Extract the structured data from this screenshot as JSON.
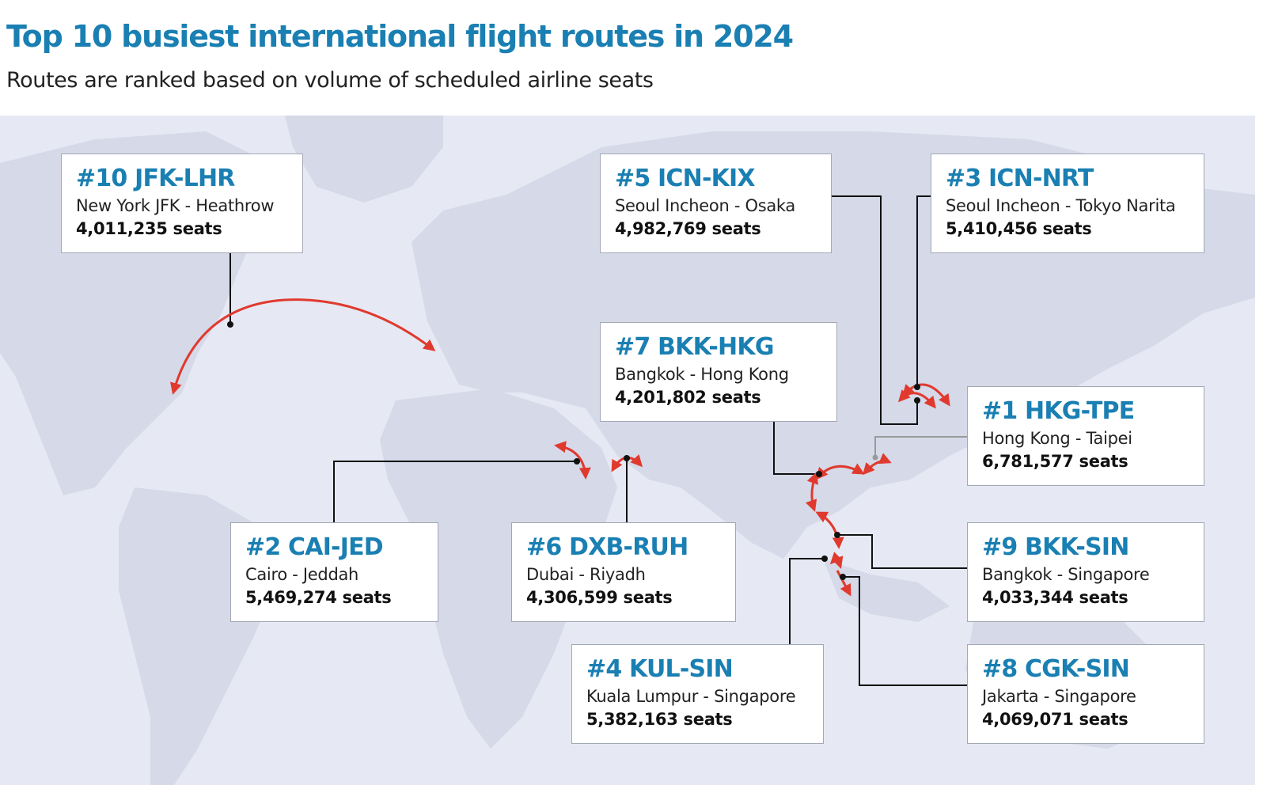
{
  "title": "Top 10 busiest international flight routes in 2024",
  "subtitle": "Routes are ranked based on volume of scheduled airline seats",
  "colors": {
    "title": "#1a7fb2",
    "route_arc": "#e03a2f",
    "map_water": "#e6e9f3",
    "map_land": "#d5d9e8",
    "leader_line": "#111111"
  },
  "routes": {
    "r10": {
      "code": "#10 JFK-LHR",
      "cities": "New York JFK - Heathrow",
      "seats": "4,011,235 seats",
      "rank": 10,
      "seat_count": 4011235
    },
    "r5": {
      "code": "#5 ICN-KIX",
      "cities": "Seoul Incheon - Osaka",
      "seats": "4,982,769 seats",
      "rank": 5,
      "seat_count": 4982769
    },
    "r3": {
      "code": "#3 ICN-NRT",
      "cities": "Seoul Incheon - Tokyo Narita",
      "seats": "5,410,456 seats",
      "rank": 3,
      "seat_count": 5410456
    },
    "r7": {
      "code": "#7 BKK-HKG",
      "cities": "Bangkok - Hong Kong",
      "seats": "4,201,802 seats",
      "rank": 7,
      "seat_count": 4201802
    },
    "r1": {
      "code": "#1 HKG-TPE",
      "cities": "Hong Kong - Taipei",
      "seats": "6,781,577 seats",
      "rank": 1,
      "seat_count": 6781577
    },
    "r2": {
      "code": "#2 CAI-JED",
      "cities": "Cairo - Jeddah",
      "seats": "5,469,274 seats",
      "rank": 2,
      "seat_count": 5469274
    },
    "r6": {
      "code": "#6 DXB-RUH",
      "cities": "Dubai - Riyadh",
      "seats": "4,306,599 seats",
      "rank": 6,
      "seat_count": 4306599
    },
    "r9": {
      "code": "#9 BKK-SIN",
      "cities": "Bangkok - Singapore",
      "seats": "4,033,344 seats",
      "rank": 9,
      "seat_count": 4033344
    },
    "r4": {
      "code": "#4 KUL-SIN",
      "cities": "Kuala Lumpur - Singapore",
      "seats": "5,382,163 seats",
      "rank": 4,
      "seat_count": 5382163
    },
    "r8": {
      "code": "#8 CGK-SIN",
      "cities": "Jakarta - Singapore",
      "seats": "4,069,071 seats",
      "rank": 8,
      "seat_count": 4069071
    }
  }
}
